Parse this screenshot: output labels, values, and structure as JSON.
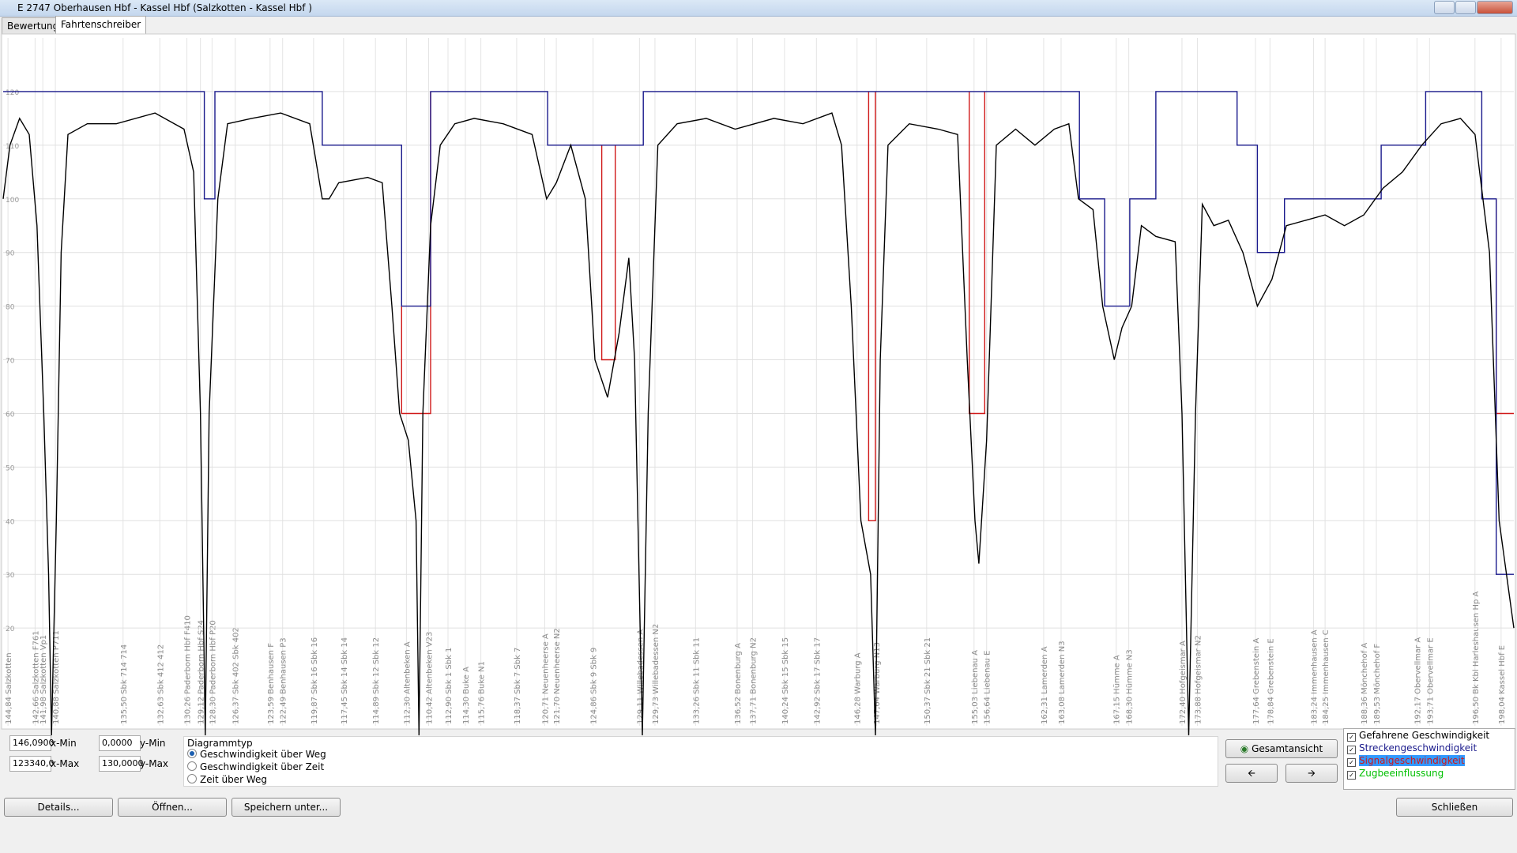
{
  "window": {
    "title": "E 2747 Oberhausen Hbf - Kassel Hbf (Salzkotten - Kassel Hbf )"
  },
  "tabs": [
    "Bewertung",
    "Fahrtenschreiber"
  ],
  "chart_data": {
    "type": "line",
    "xlim": [
      146.09,
      123340
    ],
    "ylim": [
      0,
      130
    ],
    "yticks": [
      20,
      30,
      40,
      50,
      60,
      70,
      80,
      90,
      100,
      110,
      120
    ],
    "grid": true,
    "series": [
      {
        "name": "Gefahrene Geschwindigkeit",
        "color": "#000000",
        "x": [
          146,
          698,
          1487,
          2275,
          2906,
          3458,
          3852,
          4089,
          4483,
          4878,
          5430,
          7007,
          9373,
          12527,
          14893,
          15681,
          16233,
          16628,
          16943,
          17653,
          18442,
          20413,
          22779,
          25145,
          26170,
          26722,
          27510,
          29876,
          31059,
          31848,
          32479,
          33188,
          33819,
          34056,
          34371,
          35002,
          35791,
          36974,
          38551,
          40917,
          43282,
          44465,
          45254,
          46437,
          47620,
          48408,
          49434,
          50380,
          51168,
          51642,
          52271,
          52746,
          53534,
          55111,
          57477,
          59843,
          62997,
          65363,
          67729,
          68518,
          69306,
          70095,
          70883,
          71278,
          71672,
          72303,
          74038,
          76402,
          77979,
          78769,
          79400,
          79716,
          80347,
          81135,
          82712,
          84288,
          85867,
          87050,
          87838,
          89021,
          89810,
          90756,
          91387,
          92175,
          92964,
          94147,
          95724,
          96276,
          96828,
          97380,
          97932,
          98878,
          100061,
          101244,
          102427,
          103610,
          104793,
          106370,
          107948,
          109525,
          111102,
          112679,
          114256,
          115834,
          117411,
          118988,
          120177,
          121354,
          122144,
          123340
        ],
        "values": [
          100,
          110,
          115,
          112,
          95,
          60,
          30,
          0,
          40,
          90,
          112,
          114,
          114,
          116,
          113,
          105,
          60,
          0,
          60,
          100,
          114,
          115,
          116,
          114,
          100,
          100,
          103,
          104,
          103,
          80,
          60,
          55,
          40,
          0,
          60,
          95,
          110,
          114,
          115,
          114,
          112,
          100,
          103,
          110,
          100,
          70,
          63,
          75,
          89,
          70,
          0,
          60,
          110,
          114,
          115,
          113,
          115,
          114,
          116,
          110,
          80,
          40,
          30,
          0,
          70,
          110,
          114,
          113,
          112,
          70,
          40,
          32,
          55,
          110,
          113,
          110,
          113,
          114,
          100,
          98,
          80,
          70,
          76,
          80,
          95,
          93,
          92,
          60,
          0,
          60,
          99,
          95,
          96,
          90,
          80,
          85,
          95,
          96,
          97,
          95,
          97,
          102,
          105,
          110,
          114,
          115,
          112,
          90,
          40,
          20
        ]
      },
      {
        "name": "Streckengeschwindigkeit",
        "color": "#1a1a8c",
        "x": [
          146,
          16549,
          16549,
          17416,
          17416,
          26170,
          26170,
          32636,
          32636,
          35002,
          35002,
          44544,
          44544,
          52351,
          52351,
          87917,
          87917,
          89968,
          89968,
          92018,
          92018,
          94147,
          94147,
          100771,
          100771,
          102427,
          102427,
          104636,
          104636,
          112522,
          112522,
          116149,
          116149,
          120723,
          120723,
          121906,
          121906,
          123340
        ],
        "values": [
          120,
          120,
          100,
          100,
          120,
          120,
          110,
          110,
          80,
          80,
          120,
          120,
          110,
          110,
          120,
          120,
          100,
          100,
          80,
          80,
          100,
          100,
          120,
          120,
          110,
          110,
          90,
          90,
          100,
          100,
          110,
          110,
          120,
          120,
          100,
          100,
          30,
          30
        ]
      },
      {
        "name": "Signalgeschwindigkeit",
        "color": "#d01818",
        "x": [
          32636,
          32636,
          35002,
          35002,
          null,
          48960,
          48960,
          50064,
          50064,
          null,
          70726,
          70726,
          71278,
          71278,
          null,
          78927,
          78927,
          80189,
          80189,
          null,
          121906,
          121906,
          123340
        ],
        "values": [
          80,
          60,
          60,
          120,
          null,
          110,
          70,
          70,
          110,
          null,
          120,
          40,
          40,
          120,
          null,
          120,
          60,
          60,
          120,
          null,
          100,
          60,
          60
        ]
      },
      {
        "name": "Zugbeeinflussung",
        "color": "#00c000",
        "x": [],
        "values": []
      }
    ],
    "stations": [
      {
        "x": 540,
        "label": "144,84 Salzkotten"
      },
      {
        "x": 2748,
        "label": "142,66 Salzkotten F761"
      },
      {
        "x": 3379,
        "label": "141,98 Salzkotten Vp1"
      },
      {
        "x": 4404,
        "label": "140,88 Salzkotten P711"
      },
      {
        "x": 9925,
        "label": "135,50 Sbk 714 714"
      },
      {
        "x": 12921,
        "label": "132,63 Sbk 412 412"
      },
      {
        "x": 15129,
        "label": "130,26 Paderborn Hbf F410"
      },
      {
        "x": 16233,
        "label": "129,12 Paderborn Hbf S24"
      },
      {
        "x": 17180,
        "label": "128,30 Paderborn Hbf P20"
      },
      {
        "x": 19072,
        "label": "126,37 Sbk 402 Sbk 402"
      },
      {
        "x": 21911,
        "label": "123,59 Benhausen F"
      },
      {
        "x": 22937,
        "label": "122,49 Benhausen P3"
      },
      {
        "x": 25460,
        "label": "119,87 Sbk 16 Sbk 16"
      },
      {
        "x": 27905,
        "label": "117,45 Sbk 14 Sbk 14"
      },
      {
        "x": 30507,
        "label": "114,89 Sbk 12 Sbk 12"
      },
      {
        "x": 33031,
        "label": "112,30 Altenbeken A"
      },
      {
        "x": 34844,
        "label": "110,42 Altenbeken V23"
      },
      {
        "x": 36422,
        "label": "112,90 Sbk 1 Sbk 1"
      },
      {
        "x": 37841,
        "label": "114,30 Buke A"
      },
      {
        "x": 39103,
        "label": "115,76 Buke N1"
      },
      {
        "x": 42021,
        "label": "118,37 Sbk 7 Sbk 7"
      },
      {
        "x": 44308,
        "label": "120,71 Neuenheerse A"
      },
      {
        "x": 45254,
        "label": "121,70 Neuenheerse N2"
      },
      {
        "x": 48251,
        "label": "124,86 Sbk 9 Sbk 9"
      },
      {
        "x": 52036,
        "label": "129,11 Willebadessen A"
      },
      {
        "x": 53298,
        "label": "129,73 Willebadessen N2"
      },
      {
        "x": 56610,
        "label": "133,26 Sbk 11 Sbk 11"
      },
      {
        "x": 60001,
        "label": "136,52 Bonenburg A"
      },
      {
        "x": 61263,
        "label": "137,71 Bonenburg N2"
      },
      {
        "x": 63865,
        "label": "140,24 Sbk 15 Sbk 15"
      },
      {
        "x": 66467,
        "label": "142,92 Sbk 17 Sbk 17"
      },
      {
        "x": 69779,
        "label": "146,28 Warburg A"
      },
      {
        "x": 71357,
        "label": "147,64 Warburg N13"
      },
      {
        "x": 75457,
        "label": "150,37 Sbk 21 Sbk 21"
      },
      {
        "x": 79321,
        "label": "155,03 Liebenau A"
      },
      {
        "x": 80347,
        "label": "156,64 Liebenau E"
      },
      {
        "x": 84999,
        "label": "162,31 Lamerden A"
      },
      {
        "x": 86419,
        "label": "163,08 Lamerden N3"
      },
      {
        "x": 90914,
        "label": "167,15 Hümme A"
      },
      {
        "x": 91939,
        "label": "168,30 Hümme N3"
      },
      {
        "x": 96276,
        "label": "172,40 Hofgeismar A"
      },
      {
        "x": 97538,
        "label": "173,88 Hofgeismar N2"
      },
      {
        "x": 102270,
        "label": "177,64 Grebenstein A"
      },
      {
        "x": 103453,
        "label": "178,84 Grebenstein E"
      },
      {
        "x": 107001,
        "label": "183,24 Immenhausen A"
      },
      {
        "x": 107948,
        "label": "184,25 Immenhausen C"
      },
      {
        "x": 111102,
        "label": "188,36 Mönchehof A"
      },
      {
        "x": 112127,
        "label": "189,53 Mönchehof F"
      },
      {
        "x": 115439,
        "label": "192,17 Obervellmar A"
      },
      {
        "x": 116465,
        "label": "193,71 Obervellmar E"
      },
      {
        "x": 120171,
        "label": "196,50 Bk Kbl Harleshausen Hp A"
      },
      {
        "x": 122300,
        "label": "198,04 Kassel Hbf E"
      }
    ]
  },
  "controls": {
    "x_min": {
      "text": "146,0900",
      "label": "x-Min"
    },
    "y_min": {
      "text": "0,0000",
      "label": "y-Min"
    },
    "x_max": {
      "text": "123340,0",
      "label": "x-Max"
    },
    "y_max": {
      "text": "130,0000",
      "label": "y-Max"
    },
    "diagram_type": {
      "title": "Diagrammtyp",
      "options": [
        "Geschwindigkeit über Weg",
        "Geschwindigkeit über Zeit",
        "Zeit über Weg"
      ]
    },
    "overview": "Gesamtansicht"
  },
  "buttons": {
    "details": "Details...",
    "open": "Öffnen...",
    "save": "Speichern unter...",
    "close": "Schließen"
  }
}
